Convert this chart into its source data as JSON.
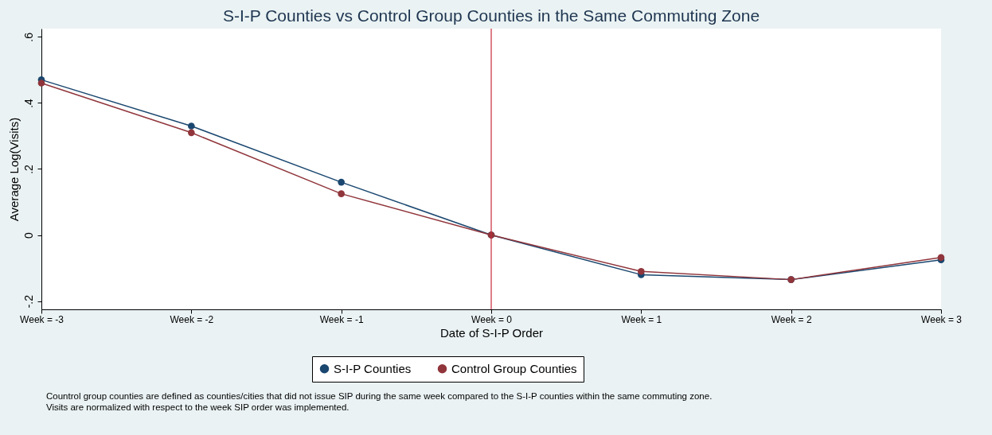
{
  "chart_data": {
    "type": "line",
    "title": "S-I-P Counties vs Control Group Counties in the Same Commuting Zone",
    "xlabel": "Date of S-I-P Order",
    "ylabel": "Average Log(Visits)",
    "categories": [
      "Week = -3",
      "Week = -2",
      "Week = -1",
      "Week = 0",
      "Week = 1",
      "Week = 2",
      "Week = 3"
    ],
    "series": [
      {
        "name": "S-I-P Counties",
        "color": "#1a476f",
        "values": [
          0.47,
          0.33,
          0.16,
          0,
          -0.12,
          -0.135,
          -0.075
        ]
      },
      {
        "name": "Control Group Counties",
        "color": "#90353b",
        "values": [
          0.46,
          0.31,
          0.125,
          0,
          -0.11,
          -0.135,
          -0.068
        ]
      }
    ],
    "ylim": [
      -0.225,
      0.625
    ],
    "yticks": [
      {
        "value": -0.2,
        "label": "-.2"
      },
      {
        "value": 0,
        "label": "0"
      },
      {
        "value": 0.2,
        "label": ".2"
      },
      {
        "value": 0.4,
        "label": ".4"
      },
      {
        "value": 0.6,
        "label": ".6"
      }
    ],
    "ref_lines": [
      {
        "axis": "x",
        "value": "Week = 0",
        "color": "#c8283c"
      }
    ],
    "grid": false,
    "legend": "bottom",
    "marker": "circle",
    "line_style": "solid",
    "annotations": [
      "Countrol group counties are defined as counties/cities that did not issue SIP during the same week compared to the S-I-P counties within the same commuting zone.",
      "Visits are normalized with respect to the week SIP order was implemented."
    ]
  }
}
